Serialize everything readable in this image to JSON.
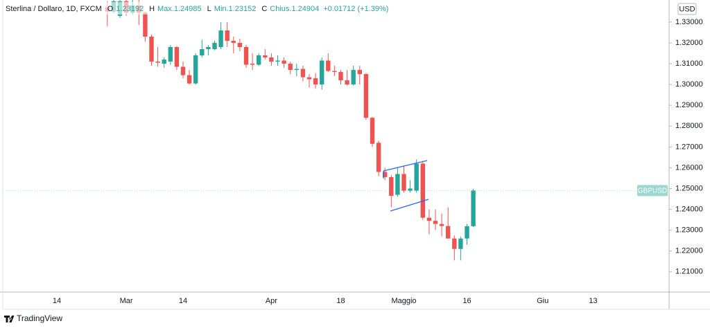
{
  "chart_data": {
    "type": "candlestick",
    "header": {
      "title": "Sterlina / Dollaro, 1D, FXCM",
      "items": [
        {
          "key": "O",
          "value": "1.23192"
        },
        {
          "key": "H",
          "value": "Max.1.24985"
        },
        {
          "key": "L",
          "value": "Min.1.23152"
        },
        {
          "key": "C",
          "value": "Chius.1.24904"
        }
      ],
      "change": "+0.01712 (+1.39%)"
    },
    "currency": "USD",
    "last_price_label": "GBPUSD",
    "branding": "TradingView",
    "up_color": "#26a69a",
    "down_color": "#ef5350",
    "categories": [
      "14",
      null,
      null,
      null,
      null,
      null,
      null,
      null,
      null,
      null,
      null,
      "Mar",
      null,
      null,
      null,
      null,
      null,
      null,
      null,
      null,
      "14",
      null,
      null,
      null,
      null,
      null,
      null,
      null,
      null,
      null,
      null,
      null,
      null,
      null,
      "Apr",
      null,
      null,
      null,
      null,
      null,
      null,
      null,
      null,
      null,
      null,
      "18",
      null,
      null,
      null,
      null,
      null,
      null,
      null,
      null,
      null,
      "Maggio",
      null,
      null,
      null,
      null,
      null,
      null,
      null,
      null,
      null,
      "16",
      null,
      null,
      null,
      null,
      null,
      null,
      null,
      null,
      null,
      null,
      null,
      "Giu",
      null,
      null,
      null,
      null,
      null,
      null,
      null,
      "13",
      null,
      null,
      null,
      null,
      null,
      null,
      null,
      null,
      null,
      null,
      null
    ],
    "open": [
      null,
      null,
      null,
      null,
      null,
      null,
      null,
      null,
      1.337,
      1.335,
      1.333,
      1.34,
      1.3345,
      1.338,
      1.3345,
      1.323,
      1.311,
      1.31,
      1.311,
      1.318,
      1.3085,
      1.3045,
      1.3005,
      1.314,
      1.317,
      1.317,
      1.318,
      1.326,
      1.321,
      1.32,
      1.318,
      1.31,
      1.3095,
      1.314,
      1.313,
      1.311,
      1.3115,
      1.31,
      1.307,
      1.3075,
      1.3035,
      1.303,
      1.3,
      1.3115,
      1.3065,
      1.306,
      1.302,
      1.3,
      1.307,
      1.305,
      1.284,
      1.272,
      1.258,
      1.2555,
      1.247,
      1.257,
      1.249,
      1.249,
      1.262,
      1.236,
      1.2345,
      1.233,
      1.232,
      1.226,
      1.221,
      1.226,
      1.23192,
      null,
      null,
      null,
      null,
      null,
      null,
      null,
      null,
      null,
      null,
      null,
      null,
      null,
      null,
      null,
      null,
      null,
      null,
      null,
      null,
      null,
      null,
      null,
      null,
      null,
      null,
      null,
      null,
      null,
      null
    ],
    "high": [
      null,
      null,
      null,
      null,
      null,
      null,
      null,
      null,
      1.34,
      1.342,
      1.342,
      1.342,
      1.342,
      1.341,
      1.335,
      1.324,
      1.318,
      1.313,
      1.319,
      1.3185,
      1.311,
      1.307,
      1.315,
      1.3215,
      1.319,
      1.321,
      1.33,
      1.33,
      1.323,
      1.322,
      1.319,
      1.315,
      1.315,
      1.317,
      1.315,
      1.314,
      1.313,
      1.311,
      1.31,
      1.309,
      1.305,
      1.3055,
      1.313,
      1.315,
      1.309,
      1.307,
      1.307,
      1.309,
      1.309,
      1.3055,
      1.2845,
      1.273,
      1.26,
      1.2565,
      1.26,
      1.261,
      1.254,
      1.264,
      1.263,
      1.24,
      1.24,
      1.238,
      1.241,
      1.2275,
      1.227,
      1.233,
      1.24985,
      null,
      null,
      null,
      null,
      null,
      null,
      null,
      null,
      null,
      null,
      null,
      null,
      null,
      null,
      null,
      null,
      null,
      null,
      null,
      null,
      null,
      null,
      null,
      null,
      null,
      null,
      null,
      null,
      null,
      null
    ],
    "low": [
      null,
      null,
      null,
      null,
      null,
      null,
      null,
      null,
      1.328,
      1.334,
      1.332,
      1.333,
      1.3335,
      1.3285,
      1.3205,
      1.309,
      1.3085,
      1.308,
      1.3095,
      1.307,
      1.303,
      1.3,
      1.3,
      1.313,
      1.314,
      1.3165,
      1.317,
      1.318,
      1.315,
      1.316,
      1.308,
      1.307,
      1.309,
      1.312,
      1.309,
      1.309,
      1.308,
      1.305,
      1.304,
      1.3015,
      1.2985,
      1.298,
      1.2975,
      1.306,
      1.304,
      1.3,
      1.2995,
      1.2995,
      1.3,
      1.283,
      1.27,
      1.256,
      1.254,
      1.241,
      1.246,
      1.248,
      1.248,
      1.248,
      1.235,
      1.228,
      1.23,
      1.227,
      1.226,
      1.2155,
      1.2155,
      1.223,
      1.23152,
      null,
      null,
      null,
      null,
      null,
      null,
      null,
      null,
      null,
      null,
      null,
      null,
      null,
      null,
      null,
      null,
      null,
      null,
      null,
      null,
      null,
      null,
      null,
      null,
      null,
      null,
      null,
      null,
      null,
      null
    ],
    "close": [
      null,
      null,
      null,
      null,
      null,
      null,
      null,
      null,
      1.335,
      1.34,
      1.34,
      1.3345,
      1.338,
      1.3345,
      1.323,
      1.311,
      1.3105,
      1.312,
      1.318,
      1.3085,
      1.3045,
      1.3005,
      1.314,
      1.317,
      1.318,
      1.32,
      1.326,
      1.321,
      1.32,
      1.318,
      1.3095,
      1.3095,
      1.314,
      1.313,
      1.311,
      1.3115,
      1.31,
      1.307,
      1.3075,
      1.3035,
      1.3025,
      1.3,
      1.3115,
      1.3065,
      1.306,
      1.302,
      1.3,
      1.307,
      1.305,
      1.284,
      1.2715,
      1.258,
      1.2555,
      1.2465,
      1.257,
      1.249,
      1.25,
      1.262,
      1.236,
      1.2345,
      1.233,
      1.232,
      1.226,
      1.221,
      1.226,
      1.23192,
      1.24904,
      null,
      null,
      null,
      null,
      null,
      null,
      null,
      null,
      null,
      null,
      null,
      null,
      null,
      null,
      null,
      null,
      null,
      null,
      null,
      null,
      null,
      null,
      null,
      null,
      null,
      null,
      null,
      null,
      null,
      null
    ],
    "ylim": [
      1.2003,
      1.3406
    ],
    "yticks": [
      {
        "value": 1.33,
        "label": "1.33000"
      },
      {
        "value": 1.32,
        "label": "1.32000"
      },
      {
        "value": 1.31,
        "label": "1.31000"
      },
      {
        "value": 1.3,
        "label": "1.30000"
      },
      {
        "value": 1.29,
        "label": "1.29000"
      },
      {
        "value": 1.28,
        "label": "1.28000"
      },
      {
        "value": 1.27,
        "label": "1.27000"
      },
      {
        "value": 1.26,
        "label": "1.26000"
      },
      {
        "value": 1.25,
        "label": "1.25000"
      },
      {
        "value": 1.24,
        "label": "1.24000"
      },
      {
        "value": 1.23,
        "label": "1.23000"
      },
      {
        "value": 1.22,
        "label": "1.22000"
      },
      {
        "value": 1.21,
        "label": "1.21000"
      }
    ]
  }
}
